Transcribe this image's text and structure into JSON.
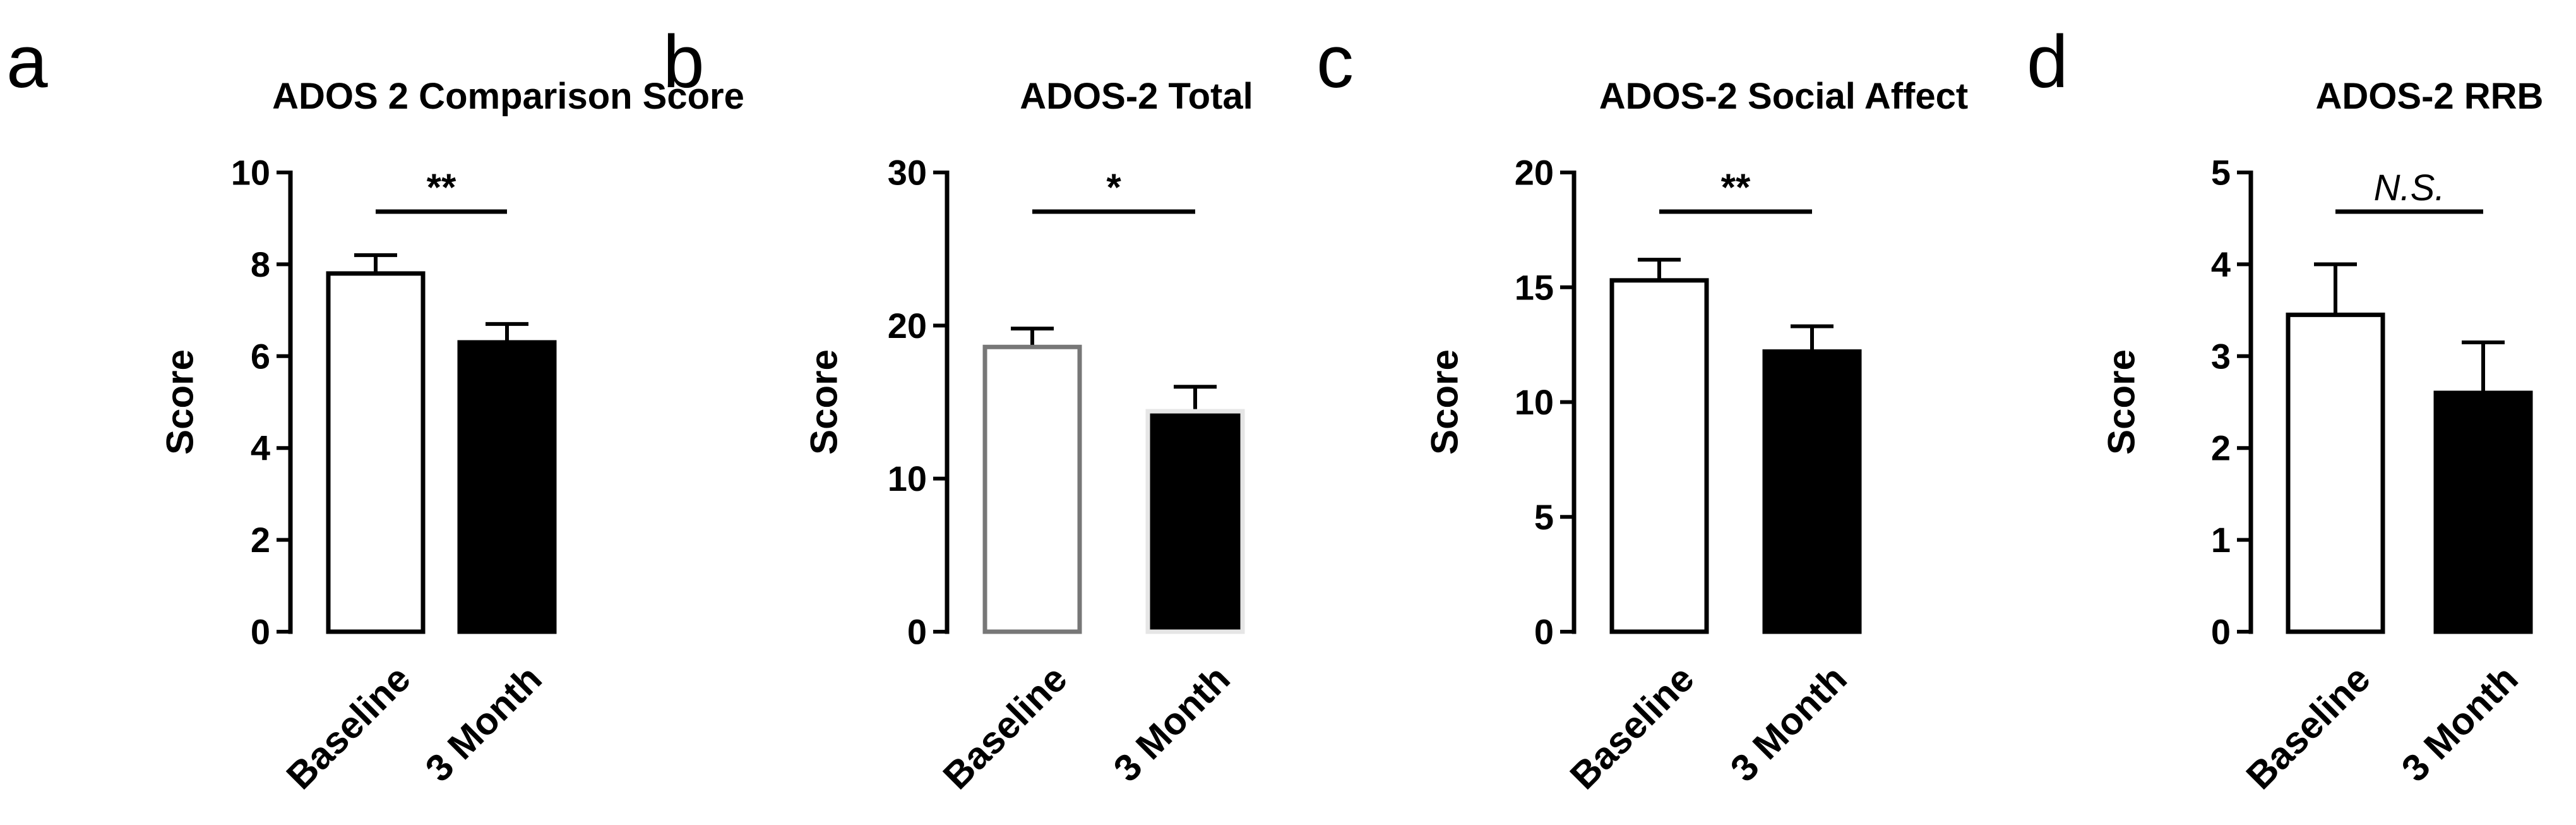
{
  "chart_data": [
    {
      "panel": "a",
      "type": "bar",
      "title": "ADOS 2 Comparison Score",
      "ylabel": "Score",
      "ylim": [
        0,
        10
      ],
      "yticks": [
        0,
        2,
        4,
        6,
        8,
        10
      ],
      "categories": [
        "Baseline",
        "3 Month"
      ],
      "values": [
        7.8,
        6.3
      ],
      "errors": [
        0.4,
        0.4
      ],
      "fills": [
        "#ffffff",
        "#000000"
      ],
      "edges": [
        "#000000",
        "#000000"
      ],
      "significance": "**",
      "significance_italic": false
    },
    {
      "panel": "b",
      "type": "bar",
      "title": "ADOS-2 Total",
      "ylabel": "Score",
      "ylim": [
        0,
        30
      ],
      "yticks": [
        0,
        10,
        20,
        30
      ],
      "categories": [
        "Baseline",
        "3 Month"
      ],
      "values": [
        18.6,
        14.4
      ],
      "errors": [
        1.2,
        1.6
      ],
      "fills": [
        "#ffffff",
        "#000000"
      ],
      "edges": [
        "#777777",
        "#e6e6e6"
      ],
      "significance": "*",
      "significance_italic": false
    },
    {
      "panel": "c",
      "type": "bar",
      "title": "ADOS-2 Social Affect",
      "ylabel": "Score",
      "ylim": [
        0,
        20
      ],
      "yticks": [
        0,
        5,
        10,
        15,
        20
      ],
      "categories": [
        "Baseline",
        "3 Month"
      ],
      "values": [
        15.3,
        12.2
      ],
      "errors": [
        0.9,
        1.1
      ],
      "fills": [
        "#ffffff",
        "#000000"
      ],
      "edges": [
        "#000000",
        "#000000"
      ],
      "significance": "**",
      "significance_italic": false
    },
    {
      "panel": "d",
      "type": "bar",
      "title": "ADOS-2 RRB",
      "ylabel": "Score",
      "ylim": [
        0,
        5
      ],
      "yticks": [
        0,
        1,
        2,
        3,
        4,
        5
      ],
      "categories": [
        "Baseline",
        "3 Month"
      ],
      "values": [
        3.45,
        2.6
      ],
      "errors": [
        0.55,
        0.55
      ],
      "fills": [
        "#ffffff",
        "#000000"
      ],
      "edges": [
        "#000000",
        "#000000"
      ],
      "significance": "N.S.",
      "significance_italic": true
    }
  ]
}
